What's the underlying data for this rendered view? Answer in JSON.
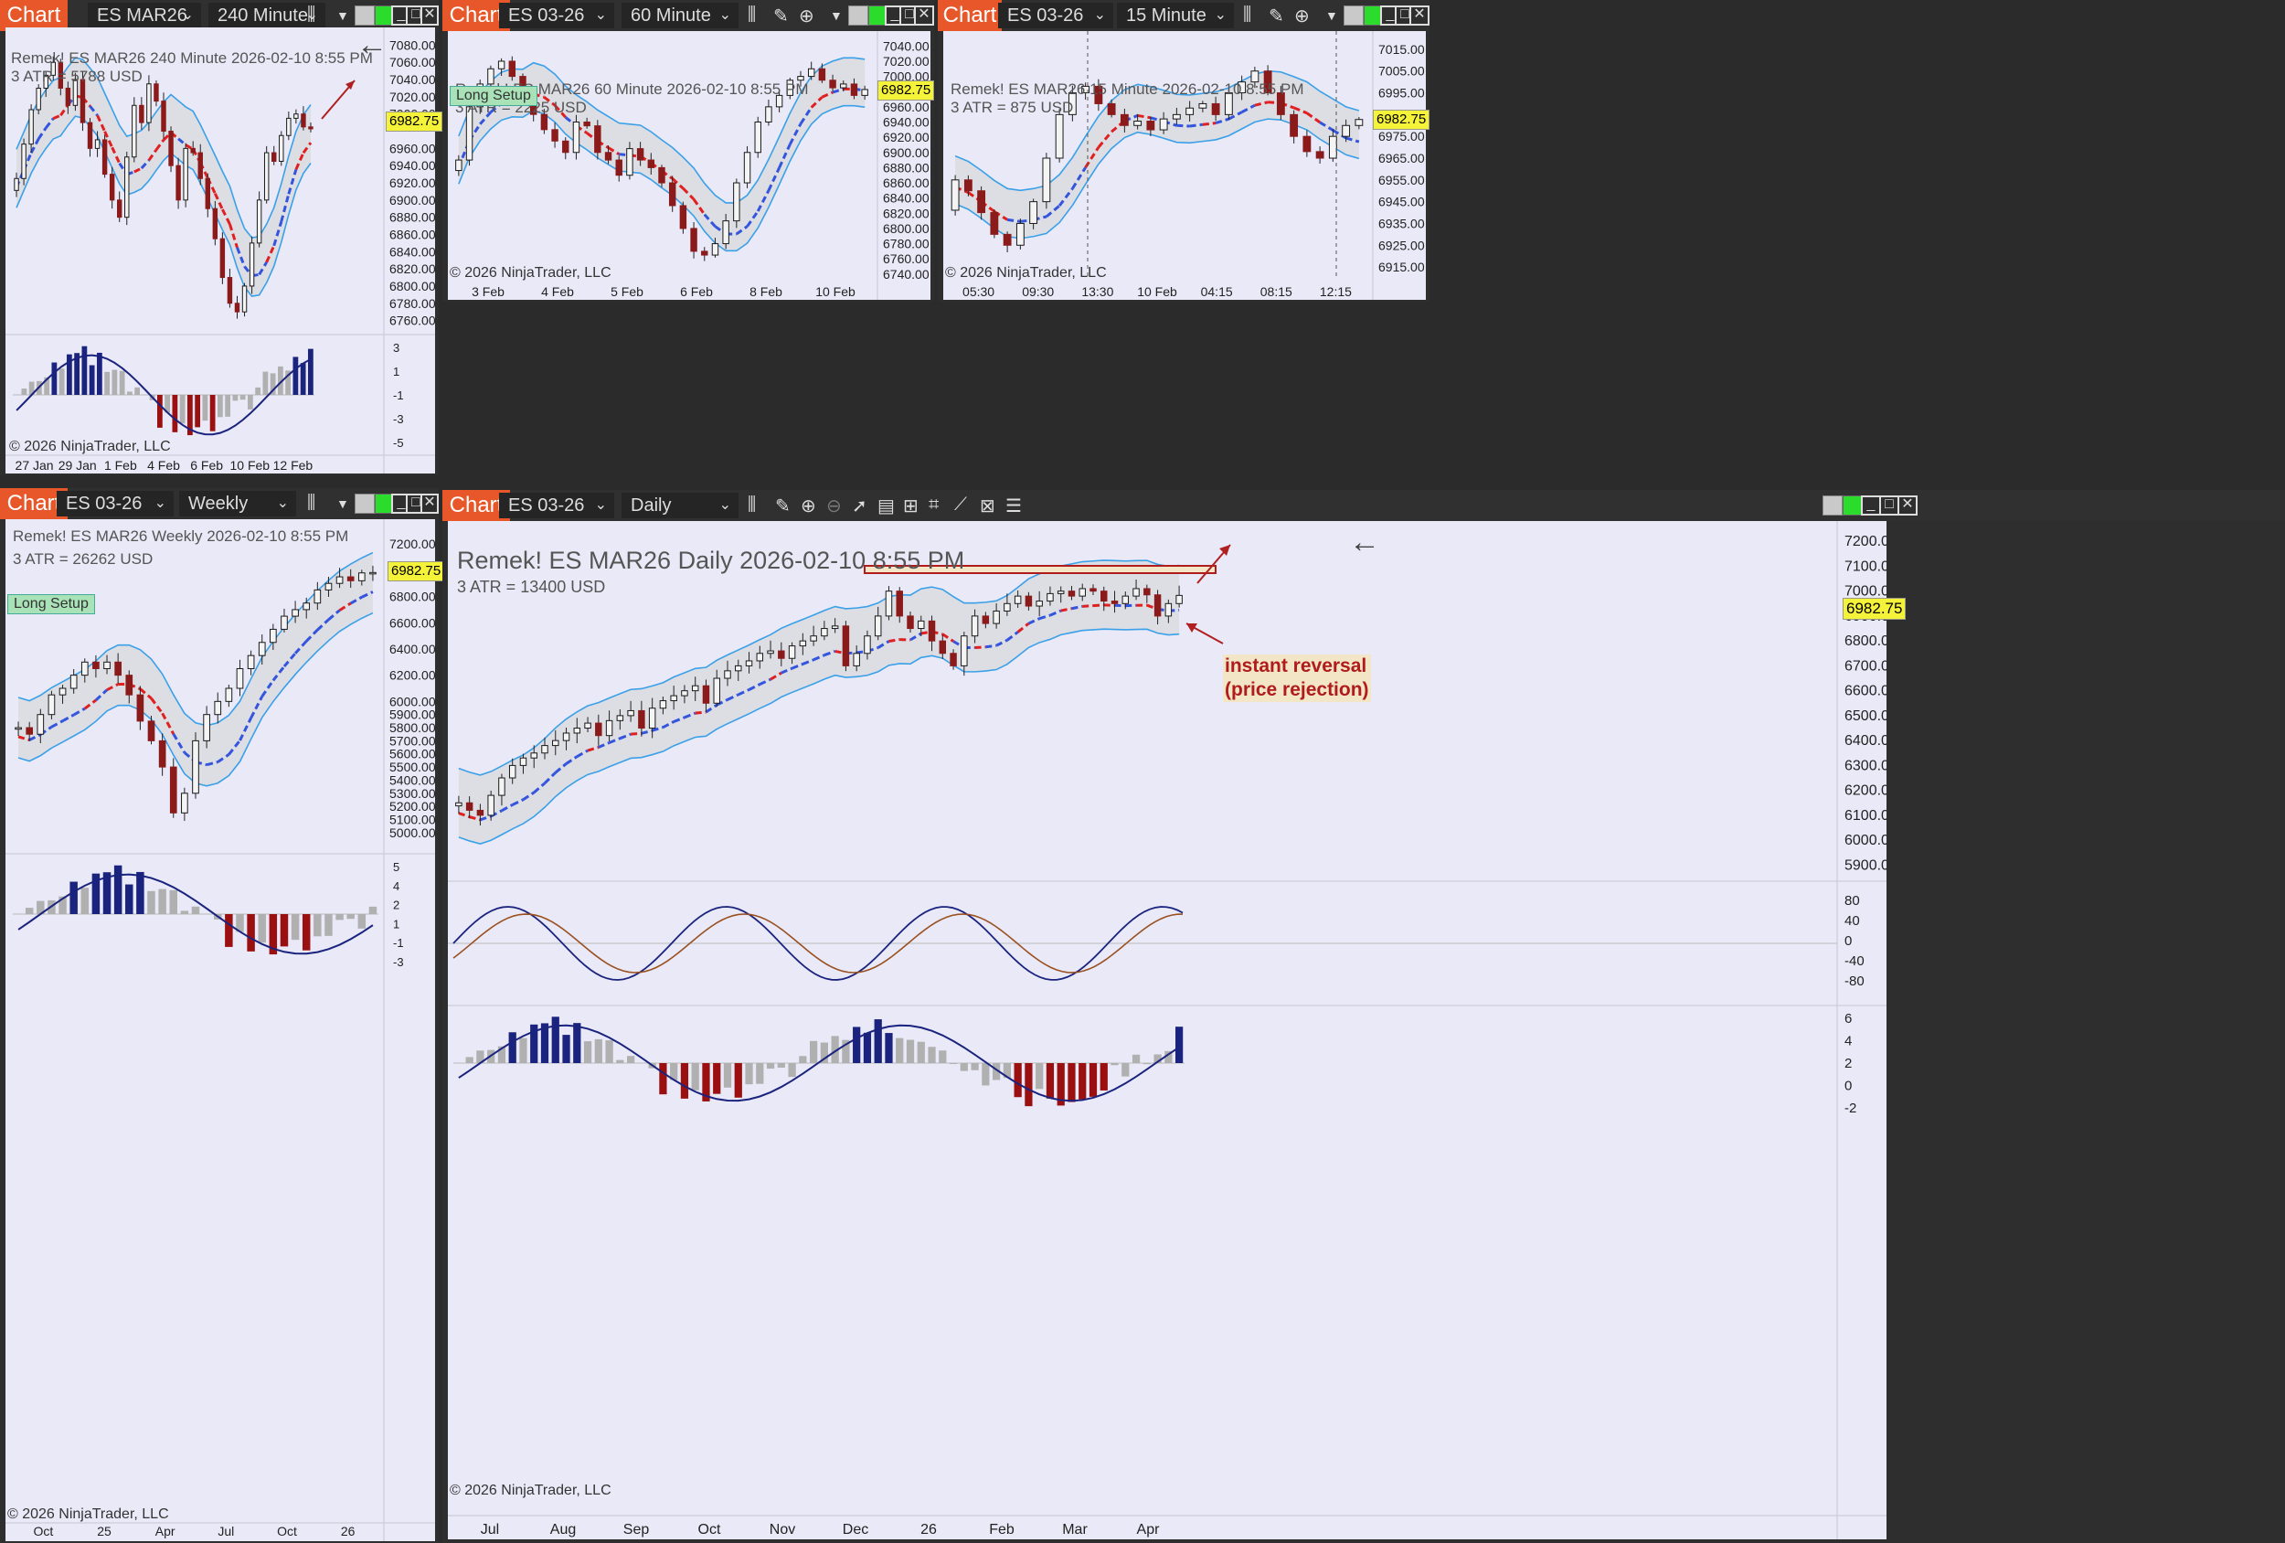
{
  "windows": {
    "w240": {
      "tab": "Chart",
      "instrument": "ES MAR26",
      "interval": "240 Minute",
      "header": "Remek!  ES MAR26  240 Minute  2026-02-10 8:55 PM",
      "atr": "3 ATR = 5788 USD",
      "copyright": "© 2026 NinjaTrader, LLC",
      "last_price": "6982.75",
      "yticks": [
        "7080.00",
        "7060.00",
        "7040.00",
        "7020.00",
        "7000.00",
        "6960.00",
        "6940.00",
        "6920.00",
        "6900.00",
        "6880.00",
        "6860.00",
        "6840.00",
        "6820.00",
        "6800.00",
        "6780.00",
        "6760.00"
      ],
      "ind_ticks": [
        "3",
        "1",
        "-1",
        "-3",
        "-5"
      ],
      "xticks": [
        "27 Jan",
        "29 Jan",
        "1 Feb",
        "4 Feb",
        "6 Feb",
        "10 Feb",
        "12 Feb"
      ]
    },
    "w60": {
      "tab": "Chart",
      "instrument": "ES 03-26",
      "interval": "60 Minute",
      "header": "Remek!  ES MAR26  60 Minute  2026-02-10 8:55 PM",
      "atr": "3 ATR = 2225 USD",
      "copyright": "© 2026 NinjaTrader, LLC",
      "last_price": "6982.75",
      "badge": "Long Setup",
      "yticks": [
        "7040.00",
        "7020.00",
        "7000.00",
        "6960.00",
        "6940.00",
        "6920.00",
        "6900.00",
        "6880.00",
        "6860.00",
        "6840.00",
        "6820.00",
        "6800.00",
        "6780.00",
        "6760.00",
        "6740.00"
      ],
      "xticks": [
        "3 Feb",
        "4 Feb",
        "5 Feb",
        "6 Feb",
        "8 Feb",
        "10 Feb"
      ]
    },
    "w15": {
      "tab": "Chart",
      "instrument": "ES 03-26",
      "interval": "15 Minute",
      "header": "Remek!  ES MAR26  15 Minute  2026-02-10 8:55 PM",
      "atr": "3 ATR = 875 USD",
      "copyright": "© 2026 NinjaTrader, LLC",
      "last_price": "6982.75",
      "yticks": [
        "7015.00",
        "7005.00",
        "6995.00",
        "6985.00",
        "6975.00",
        "6965.00",
        "6955.00",
        "6945.00",
        "6935.00",
        "6925.00",
        "6915.00"
      ],
      "xticks": [
        "05:30",
        "09:30",
        "13:30",
        "10 Feb",
        "04:15",
        "08:15",
        "12:15"
      ]
    },
    "wweek": {
      "tab": "Chart",
      "instrument": "ES 03-26",
      "interval": "Weekly",
      "header": "Remek!  ES MAR26  Weekly  2026-02-10 8:55 PM",
      "atr": "3 ATR = 26262 USD",
      "copyright": "© 2026 NinjaTrader, LLC",
      "last_price": "6982.75",
      "badge": "Long Setup",
      "yticks": [
        "7200.00",
        "7000.00",
        "6800.00",
        "6600.00",
        "6400.00",
        "6200.00",
        "6000.00",
        "5900.00",
        "5800.00",
        "5700.00",
        "5600.00",
        "5500.00",
        "5400.00",
        "5300.00",
        "5200.00",
        "5100.00",
        "5000.00"
      ],
      "ind_ticks": [
        "5",
        "4",
        "2",
        "1",
        "-1",
        "-3"
      ],
      "xticks": [
        "Oct",
        "25",
        "Apr",
        "Jul",
        "Oct",
        "26"
      ]
    },
    "wday": {
      "tab": "Chart",
      "instrument": "ES 03-26",
      "interval": "Daily",
      "header": "Remek!  ES MAR26  Daily  2026-02-10 8:55 PM",
      "atr": "3 ATR = 13400 USD",
      "copyright": "© 2026 NinjaTrader, LLC",
      "last_price": "6982.75",
      "annotation_line1": "instant reversal",
      "annotation_line2": "(price rejection)",
      "yticks": [
        "7200.00",
        "7100.00",
        "7000.00",
        "6900.00",
        "6800.00",
        "6700.00",
        "6600.00",
        "6500.00",
        "6400.00",
        "6300.00",
        "6200.00",
        "6100.00",
        "6000.00",
        "5900.00"
      ],
      "osc_ticks": [
        "80",
        "40",
        "0",
        "-40",
        "-80"
      ],
      "ind_ticks": [
        "6",
        "4",
        "2",
        "0",
        "-2"
      ],
      "xticks": [
        "Jul",
        "Aug",
        "Sep",
        "Oct",
        "Nov",
        "Dec",
        "26",
        "Feb",
        "Mar",
        "Apr"
      ]
    }
  },
  "colors": {
    "up": "#1a1a1a",
    "down": "#8b1a1a",
    "band": "#3aa0e8",
    "mid_up": "#3355dd",
    "mid_dn": "#e02020",
    "hist_up": "#1a237e",
    "hist_dn": "#9a1010",
    "hist_neutral": "#b0b0b0",
    "support": "#f2f200",
    "accent": "#e8572a"
  },
  "chart_data": [
    {
      "type": "candlestick",
      "name_shown": "ES MAR26 240 Minute",
      "ylim": [
        6750,
        7090
      ],
      "last": 6982.75,
      "close": [
        6925,
        6965,
        7005,
        7030,
        7045,
        7060,
        7030,
        7010,
        7040,
        6990,
        6960,
        6970,
        6930,
        6900,
        6880,
        6950,
        7010,
        6990,
        7035,
        7015,
        6980,
        6940,
        6900,
        6960,
        6955,
        6925,
        6890,
        6855,
        6810,
        6780,
        6770,
        6800,
        6850,
        6900,
        6955,
        6945,
        6975,
        6995,
        7000,
        6985,
        6982.75
      ]
    },
    {
      "type": "candlestick",
      "name_shown": "ES MAR26 60 Minute",
      "ylim": [
        6735,
        7050
      ],
      "last": 6982.75,
      "close": [
        6890,
        6960,
        6990,
        7010,
        7020,
        7000,
        6975,
        6950,
        6930,
        6915,
        6900,
        6940,
        6935,
        6900,
        6890,
        6870,
        6905,
        6890,
        6880,
        6860,
        6830,
        6800,
        6770,
        6765,
        6780,
        6810,
        6860,
        6900,
        6940,
        6960,
        6975,
        6995,
        7000,
        7010,
        6995,
        6985,
        6990,
        6975,
        6982.75
      ]
    },
    {
      "type": "candlestick",
      "name_shown": "ES MAR26 15 Minute",
      "ylim": [
        6910,
        7020
      ],
      "last": 6982.75,
      "close": [
        6955,
        6950,
        6940,
        6930,
        6925,
        6935,
        6945,
        6965,
        6985,
        6995,
        6998,
        6990,
        6985,
        6980,
        6982,
        6978,
        6983,
        6985,
        6988,
        6990,
        6985,
        6995,
        7000,
        7005,
        6995,
        6985,
        6975,
        6968,
        6965,
        6975,
        6980,
        6982.75
      ]
    },
    {
      "type": "candlestick",
      "name_shown": "ES MAR26 Weekly",
      "ylim": [
        4950,
        7250
      ],
      "last": 6982.75,
      "close": [
        5800,
        5750,
        5900,
        6050,
        6100,
        6200,
        6300,
        6250,
        6300,
        6200,
        6050,
        5850,
        5700,
        5500,
        5150,
        5300,
        5700,
        5900,
        6000,
        6100,
        6250,
        6350,
        6450,
        6550,
        6650,
        6700,
        6750,
        6850,
        6900,
        6950,
        6920,
        6980,
        6982.75
      ]
    },
    {
      "type": "candlestick",
      "name_shown": "ES MAR26 Daily",
      "ylim": [
        5850,
        7230
      ],
      "last": 6982.75,
      "close": [
        6150,
        6120,
        6100,
        6180,
        6250,
        6300,
        6330,
        6350,
        6380,
        6400,
        6430,
        6450,
        6470,
        6420,
        6480,
        6500,
        6520,
        6450,
        6530,
        6560,
        6580,
        6600,
        6620,
        6550,
        6650,
        6680,
        6700,
        6720,
        6750,
        6760,
        6730,
        6780,
        6800,
        6820,
        6850,
        6860,
        6700,
        6750,
        6820,
        6900,
        7000,
        6900,
        6850,
        6880,
        6800,
        6750,
        6700,
        6820,
        6900,
        6870,
        6920,
        6950,
        6980,
        6940,
        6960,
        6990,
        7000,
        6980,
        7010,
        7000,
        6960,
        6950,
        6980,
        7010,
        6985,
        6900,
        6950,
        6982.75
      ]
    }
  ]
}
